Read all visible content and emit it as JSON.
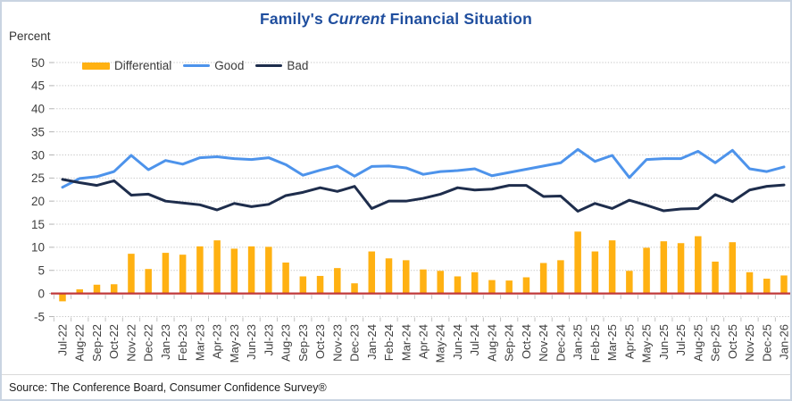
{
  "title": {
    "part1": "Family's ",
    "part2_italic": "Current",
    "part3": " Financial Situation"
  },
  "axis": {
    "unit_label": "Percent"
  },
  "legend": {
    "items": [
      {
        "label": "Differential",
        "color": "#ffb112",
        "swatch": "bar"
      },
      {
        "label": "Good",
        "color": "#4d93eb",
        "swatch": "line"
      },
      {
        "label": "Bad",
        "color": "#1e2d4c",
        "swatch": "line"
      }
    ]
  },
  "footer": {
    "source": "Source: The Conference Board, Consumer Confidence Survey®"
  },
  "chart_data": {
    "type": "combo-bar-line",
    "title": "Family's Current Financial Situation",
    "ylabel": "Percent",
    "ylim": [
      -5,
      50
    ],
    "y_ticks": [
      50,
      45,
      40,
      35,
      30,
      25,
      20,
      15,
      10,
      5,
      0,
      -5
    ],
    "grid": "dotted-horizontal",
    "legend_position": "top-left-inside",
    "zero_line_color": "#c0393b",
    "categories": [
      "Jul-22",
      "Aug-22",
      "Sep-22",
      "Oct-22",
      "Nov-22",
      "Dec-22",
      "Jan-23",
      "Feb-23",
      "Mar-23",
      "Apr-23",
      "May-23",
      "Jun-23",
      "Jul-23",
      "Aug-23",
      "Sep-23",
      "Oct-23",
      "Nov-23",
      "Dec-23",
      "Jan-24",
      "Feb-24",
      "Mar-24",
      "Apr-24",
      "May-24",
      "Jun-24",
      "Jul-24",
      "Aug-24",
      "Sep-24",
      "Oct-24",
      "Nov-24",
      "Dec-24",
      "Jan-25",
      "Feb-25",
      "Mar-25",
      "Apr-25",
      "May-25",
      "Jun-25",
      "Jul-25",
      "Aug-25",
      "Sep-25",
      "Oct-25",
      "Nov-25",
      "Dec-25",
      "Jan-26"
    ],
    "series": [
      {
        "name": "Differential",
        "type": "bar",
        "color": "#ffb112",
        "values": [
          -1.7,
          0.9,
          1.9,
          2.0,
          8.6,
          5.3,
          8.8,
          8.4,
          10.2,
          11.5,
          9.7,
          10.2,
          10.1,
          6.7,
          3.7,
          3.8,
          5.5,
          2.2,
          9.1,
          7.6,
          7.2,
          5.2,
          4.9,
          3.7,
          4.6,
          2.9,
          2.8,
          3.5,
          6.6,
          7.2,
          13.4,
          9.1,
          11.5,
          4.9,
          9.9,
          11.3,
          10.9,
          12.4,
          6.9,
          11.1,
          4.6,
          3.2,
          3.9
        ]
      },
      {
        "name": "Good",
        "type": "line",
        "color": "#4d93eb",
        "values": [
          23.0,
          24.9,
          25.3,
          26.4,
          29.9,
          26.8,
          28.8,
          28.0,
          29.4,
          29.6,
          29.2,
          29.0,
          29.4,
          27.9,
          25.6,
          26.7,
          27.6,
          25.4,
          27.5,
          27.6,
          27.2,
          25.8,
          26.4,
          26.6,
          27.0,
          25.5,
          26.2,
          26.9,
          27.6,
          28.3,
          31.2,
          28.6,
          29.9,
          25.1,
          29.0,
          29.2,
          29.2,
          30.8,
          28.3,
          31.0,
          27.0,
          26.4,
          27.4
        ]
      },
      {
        "name": "Bad",
        "type": "line",
        "color": "#1e2d4c",
        "values": [
          24.7,
          24.0,
          23.4,
          24.4,
          21.3,
          21.5,
          20.0,
          19.6,
          19.2,
          18.1,
          19.5,
          18.8,
          19.3,
          21.2,
          21.9,
          22.9,
          22.1,
          23.2,
          18.4,
          20.0,
          20.0,
          20.6,
          21.5,
          22.9,
          22.4,
          22.6,
          23.4,
          23.4,
          21.0,
          21.1,
          17.8,
          19.5,
          18.4,
          20.2,
          19.1,
          17.9,
          18.3,
          18.4,
          21.4,
          19.9,
          22.4,
          23.2,
          23.5
        ]
      }
    ]
  }
}
